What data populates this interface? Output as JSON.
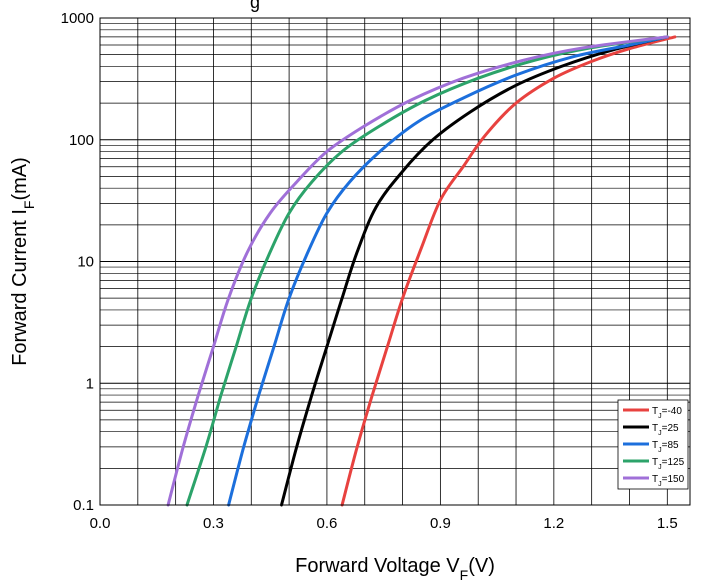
{
  "chart_data": {
    "type": "line",
    "title": "",
    "top_caption_fragment": "g",
    "xlabel": {
      "main": "Forward Voltage V",
      "sub": "F",
      "unit": "(V)"
    },
    "ylabel": {
      "main": "Forward Current I",
      "sub": "F",
      "unit": "(mA)"
    },
    "xlim": [
      0.0,
      1.56
    ],
    "ylim": [
      0.1,
      1000
    ],
    "yscale": "log",
    "grid": true,
    "legend_position": "bottom-right",
    "x_ticks": [
      {
        "value": 0.0,
        "label": "0.0"
      },
      {
        "value": 0.3,
        "label": "0.3"
      },
      {
        "value": 0.6,
        "label": "0.6"
      },
      {
        "value": 0.9,
        "label": "0.9"
      },
      {
        "value": 1.2,
        "label": "1.2"
      },
      {
        "value": 1.5,
        "label": "1.5"
      }
    ],
    "y_ticks": [
      {
        "value": 0.1,
        "label": "0.1"
      },
      {
        "value": 1,
        "label": "1"
      },
      {
        "value": 10,
        "label": "10"
      },
      {
        "value": 100,
        "label": "100"
      },
      {
        "value": 1000,
        "label": "1000"
      }
    ],
    "series": [
      {
        "name_main": "T",
        "name_sub": "J",
        "name_rest": "=-40",
        "color": "#e8423f",
        "points": [
          [
            0.64,
            0.1
          ],
          [
            0.68,
            0.3
          ],
          [
            0.72,
            0.8
          ],
          [
            0.76,
            2
          ],
          [
            0.8,
            5
          ],
          [
            0.85,
            13
          ],
          [
            0.9,
            32
          ],
          [
            0.96,
            60
          ],
          [
            1.02,
            110
          ],
          [
            1.1,
            200
          ],
          [
            1.2,
            320
          ],
          [
            1.3,
            440
          ],
          [
            1.4,
            560
          ],
          [
            1.52,
            700
          ]
        ]
      },
      {
        "name_main": "T",
        "name_sub": "J",
        "name_rest": "=25",
        "color": "#000000",
        "points": [
          [
            0.48,
            0.1
          ],
          [
            0.52,
            0.3
          ],
          [
            0.56,
            0.8
          ],
          [
            0.6,
            2
          ],
          [
            0.64,
            5
          ],
          [
            0.68,
            12
          ],
          [
            0.73,
            28
          ],
          [
            0.8,
            55
          ],
          [
            0.88,
            100
          ],
          [
            0.98,
            170
          ],
          [
            1.1,
            280
          ],
          [
            1.22,
            400
          ],
          [
            1.35,
            540
          ],
          [
            1.5,
            700
          ]
        ]
      },
      {
        "name_main": "T",
        "name_sub": "J",
        "name_rest": "=85",
        "color": "#1c6fdc",
        "points": [
          [
            0.34,
            0.1
          ],
          [
            0.38,
            0.3
          ],
          [
            0.42,
            0.8
          ],
          [
            0.46,
            2
          ],
          [
            0.5,
            5
          ],
          [
            0.55,
            12
          ],
          [
            0.6,
            25
          ],
          [
            0.66,
            45
          ],
          [
            0.74,
            80
          ],
          [
            0.84,
            140
          ],
          [
            0.96,
            220
          ],
          [
            1.1,
            340
          ],
          [
            1.25,
            480
          ],
          [
            1.4,
            600
          ],
          [
            1.5,
            700
          ]
        ]
      },
      {
        "name_main": "T",
        "name_sub": "J",
        "name_rest": "=125",
        "color": "#2ca36a",
        "points": [
          [
            0.23,
            0.1
          ],
          [
            0.28,
            0.3
          ],
          [
            0.32,
            0.8
          ],
          [
            0.36,
            2
          ],
          [
            0.4,
            5
          ],
          [
            0.45,
            12
          ],
          [
            0.5,
            25
          ],
          [
            0.56,
            45
          ],
          [
            0.64,
            80
          ],
          [
            0.74,
            130
          ],
          [
            0.86,
            210
          ],
          [
            1.0,
            320
          ],
          [
            1.15,
            450
          ],
          [
            1.3,
            570
          ],
          [
            1.5,
            700
          ]
        ]
      },
      {
        "name_main": "T",
        "name_sub": "J",
        "name_rest": "=150",
        "color": "#a070d8",
        "points": [
          [
            0.18,
            0.1
          ],
          [
            0.22,
            0.3
          ],
          [
            0.26,
            0.8
          ],
          [
            0.3,
            2
          ],
          [
            0.34,
            5
          ],
          [
            0.39,
            12
          ],
          [
            0.45,
            25
          ],
          [
            0.52,
            45
          ],
          [
            0.6,
            80
          ],
          [
            0.7,
            130
          ],
          [
            0.82,
            210
          ],
          [
            0.96,
            320
          ],
          [
            1.12,
            450
          ],
          [
            1.28,
            570
          ],
          [
            1.5,
            700
          ]
        ]
      }
    ]
  }
}
